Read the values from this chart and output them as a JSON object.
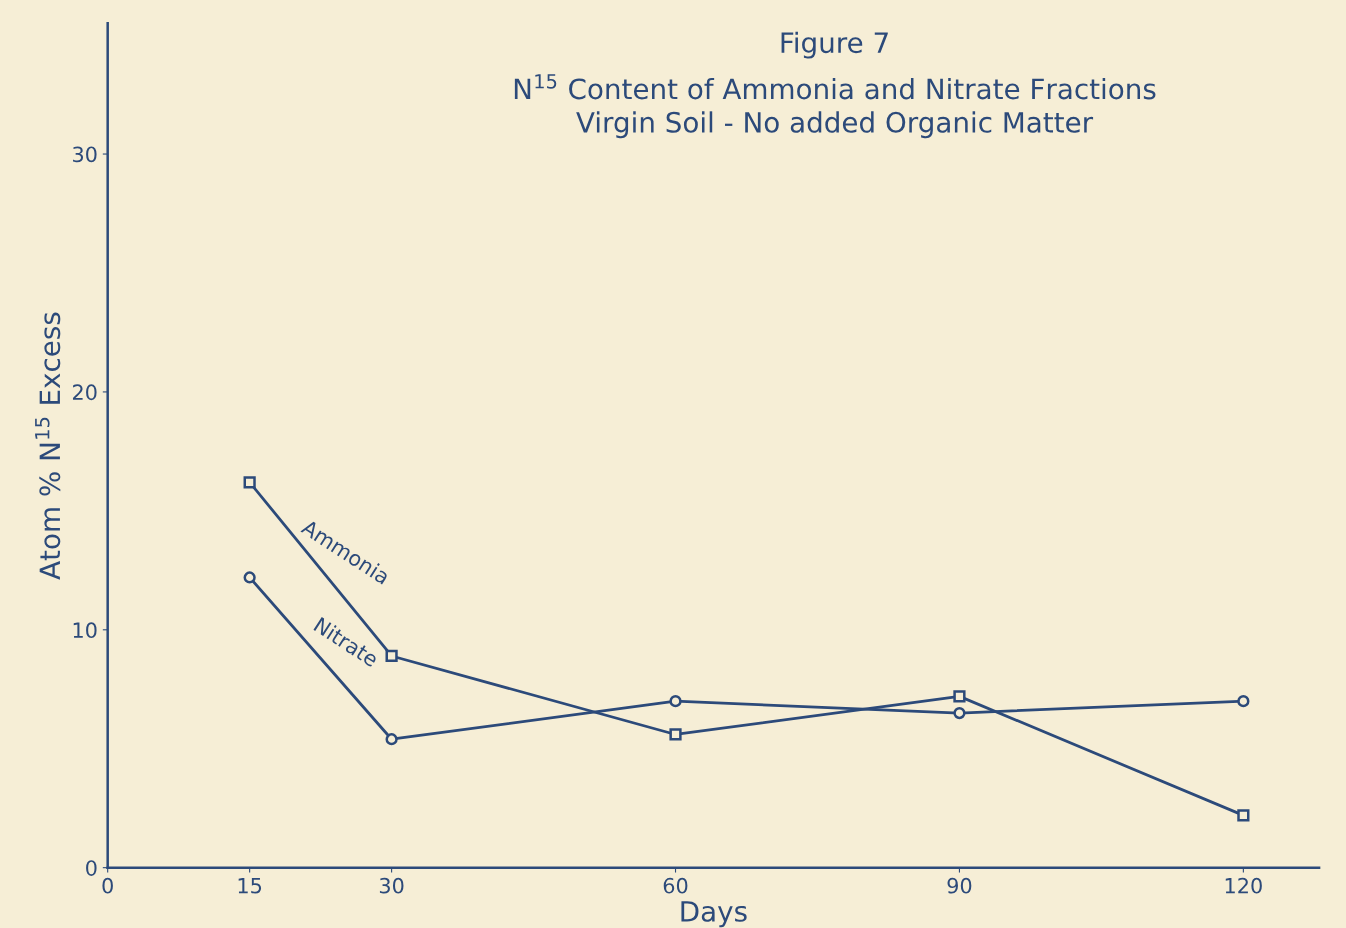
{
  "chart_data": {
    "type": "line",
    "title": "Figure 7",
    "subtitle": "N$^{15}$ Content of Ammonia and Nitrate Fractions\nVirgin Soil - No added Organic Matter",
    "xlabel": "Days",
    "ylabel": "Atom % N$^{15}$ Excess",
    "x": [
      15,
      30,
      60,
      90,
      120
    ],
    "series": [
      {
        "name": "Ammonia",
        "color": "#2c4a7a",
        "marker": "square",
        "values": [
          16.2,
          8.9,
          5.6,
          7.2,
          2.2
        ]
      },
      {
        "name": "Nitrate",
        "color": "#2c4a7a",
        "marker": "circle",
        "values": [
          12.2,
          5.4,
          7.0,
          6.5,
          7.0
        ]
      }
    ],
    "xlim": [
      0,
      128
    ],
    "ylim": [
      0,
      35.5
    ],
    "xticks": [
      0,
      15,
      30,
      60,
      90,
      120
    ],
    "yticks": [
      0,
      10,
      20,
      30
    ],
    "grid": false,
    "legend": false,
    "line_style": "solid"
  }
}
